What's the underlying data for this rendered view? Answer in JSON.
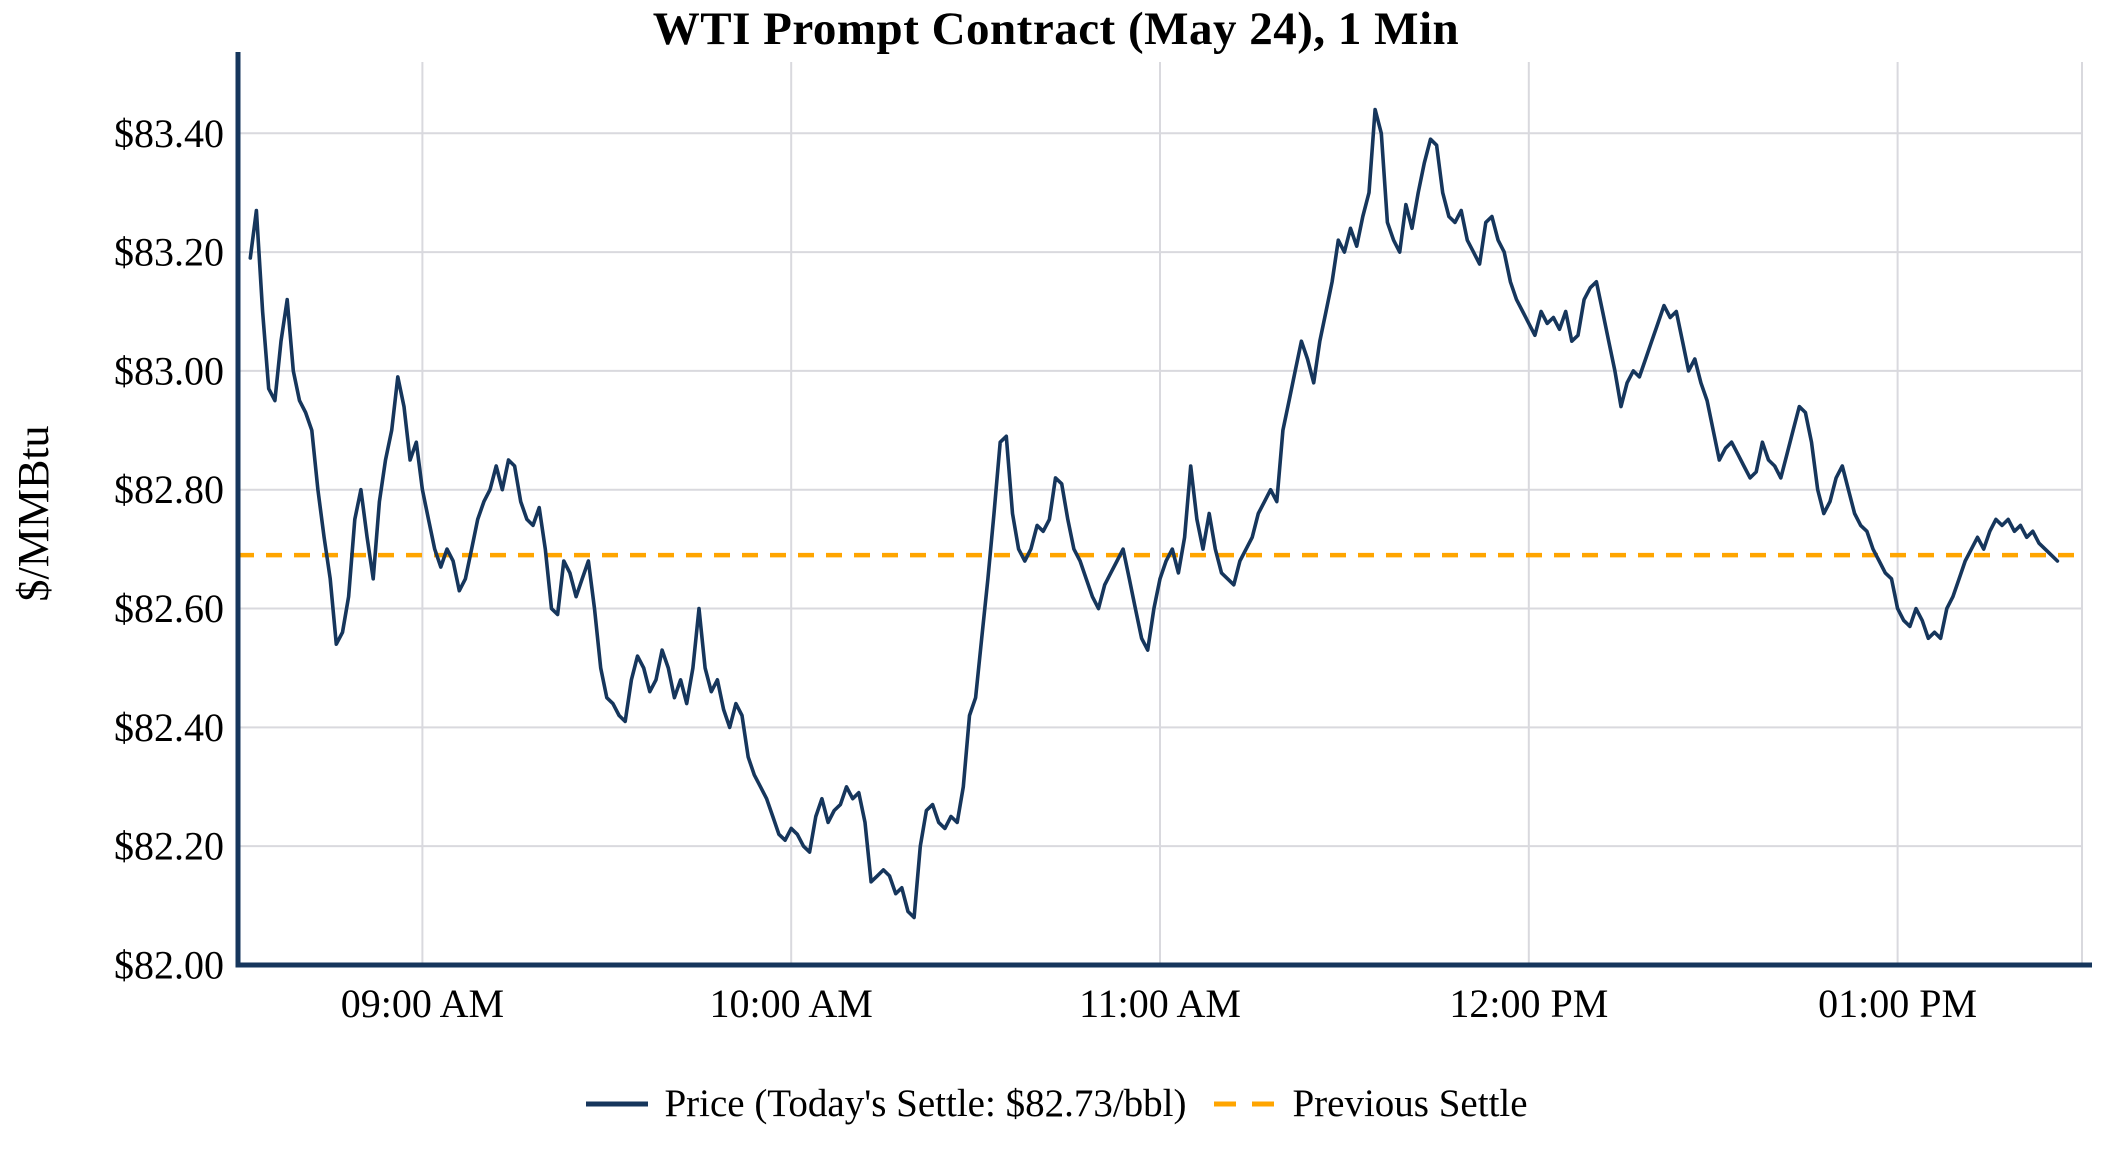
{
  "chart_data": {
    "type": "line",
    "title": "WTI Prompt Contract (May 24), 1 Min",
    "xlabel": "",
    "ylabel": "$/MMBtu",
    "xlim": [
      510,
      810
    ],
    "ylim": [
      82.0,
      83.52
    ],
    "grid": true,
    "legend_position": "bottom",
    "x_ticks": [
      [
        540,
        "09:00 AM"
      ],
      [
        600,
        "10:00 AM"
      ],
      [
        660,
        "11:00 AM"
      ],
      [
        720,
        "12:00 PM"
      ],
      [
        780,
        "01:00 PM"
      ]
    ],
    "y_ticks": [
      [
        82.0,
        "$82.00"
      ],
      [
        82.2,
        "$82.20"
      ],
      [
        82.4,
        "$82.40"
      ],
      [
        82.6,
        "$82.60"
      ],
      [
        82.8,
        "$82.80"
      ],
      [
        83.0,
        "$83.00"
      ],
      [
        83.2,
        "$83.20"
      ],
      [
        83.4,
        "$83.40"
      ]
    ],
    "previous_settle": 82.69,
    "todays_settle": 82.73,
    "series": [
      {
        "name": "Price",
        "color": "#16365c",
        "start_minute": 512,
        "interval_minutes": 1,
        "prices": [
          83.19,
          83.27,
          83.1,
          82.97,
          82.95,
          83.05,
          83.12,
          83.0,
          82.95,
          82.93,
          82.9,
          82.8,
          82.72,
          82.65,
          82.54,
          82.56,
          82.62,
          82.75,
          82.8,
          82.72,
          82.65,
          82.78,
          82.85,
          82.9,
          82.99,
          82.94,
          82.85,
          82.88,
          82.8,
          82.75,
          82.7,
          82.67,
          82.7,
          82.68,
          82.63,
          82.65,
          82.7,
          82.75,
          82.78,
          82.8,
          82.84,
          82.8,
          82.85,
          82.84,
          82.78,
          82.75,
          82.74,
          82.77,
          82.7,
          82.6,
          82.59,
          82.68,
          82.66,
          82.62,
          82.65,
          82.68,
          82.6,
          82.5,
          82.45,
          82.44,
          82.42,
          82.41,
          82.48,
          82.52,
          82.5,
          82.46,
          82.48,
          82.53,
          82.5,
          82.45,
          82.48,
          82.44,
          82.5,
          82.6,
          82.5,
          82.46,
          82.48,
          82.43,
          82.4,
          82.44,
          82.42,
          82.35,
          82.32,
          82.3,
          82.28,
          82.25,
          82.22,
          82.21,
          82.23,
          82.22,
          82.2,
          82.19,
          82.25,
          82.28,
          82.24,
          82.26,
          82.27,
          82.3,
          82.28,
          82.29,
          82.24,
          82.14,
          82.15,
          82.16,
          82.15,
          82.12,
          82.13,
          82.09,
          82.08,
          82.2,
          82.26,
          82.27,
          82.24,
          82.23,
          82.25,
          82.24,
          82.3,
          82.42,
          82.45,
          82.55,
          82.65,
          82.76,
          82.88,
          82.89,
          82.76,
          82.7,
          82.68,
          82.7,
          82.74,
          82.73,
          82.75,
          82.82,
          82.81,
          82.75,
          82.7,
          82.68,
          82.65,
          82.62,
          82.6,
          82.64,
          82.66,
          82.68,
          82.7,
          82.65,
          82.6,
          82.55,
          82.53,
          82.6,
          82.65,
          82.68,
          82.7,
          82.66,
          82.72,
          82.84,
          82.75,
          82.7,
          82.76,
          82.7,
          82.66,
          82.65,
          82.64,
          82.68,
          82.7,
          82.72,
          82.76,
          82.78,
          82.8,
          82.78,
          82.9,
          82.95,
          83.0,
          83.05,
          83.02,
          82.98,
          83.05,
          83.1,
          83.15,
          83.22,
          83.2,
          83.24,
          83.21,
          83.26,
          83.3,
          83.44,
          83.4,
          83.25,
          83.22,
          83.2,
          83.28,
          83.24,
          83.3,
          83.35,
          83.39,
          83.38,
          83.3,
          83.26,
          83.25,
          83.27,
          83.22,
          83.2,
          83.18,
          83.25,
          83.26,
          83.22,
          83.2,
          83.15,
          83.12,
          83.1,
          83.08,
          83.06,
          83.1,
          83.08,
          83.09,
          83.07,
          83.1,
          83.05,
          83.06,
          83.12,
          83.14,
          83.15,
          83.1,
          83.05,
          83.0,
          82.94,
          82.98,
          83.0,
          82.99,
          83.02,
          83.05,
          83.08,
          83.11,
          83.09,
          83.1,
          83.05,
          83.0,
          83.02,
          82.98,
          82.95,
          82.9,
          82.85,
          82.87,
          82.88,
          82.86,
          82.84,
          82.82,
          82.83,
          82.88,
          82.85,
          82.84,
          82.82,
          82.86,
          82.9,
          82.94,
          82.93,
          82.88,
          82.8,
          82.76,
          82.78,
          82.82,
          82.84,
          82.8,
          82.76,
          82.74,
          82.73,
          82.7,
          82.68,
          82.66,
          82.65,
          82.6,
          82.58,
          82.57,
          82.6,
          82.58,
          82.55,
          82.56,
          82.55,
          82.6,
          82.62,
          82.65,
          82.68,
          82.7,
          82.72,
          82.7,
          82.73,
          82.75,
          82.74,
          82.75,
          82.73,
          82.74,
          82.72,
          82.73,
          82.71,
          82.7,
          82.69,
          82.68
        ]
      }
    ],
    "legend": [
      {
        "label": "Price (Today's Settle: $82.73/bbl)",
        "color": "#16365c",
        "dash": false
      },
      {
        "label": "Previous Settle",
        "color": "#ffa500",
        "dash": true
      }
    ],
    "colors": {
      "line": "#16365c",
      "axis": "#16365c",
      "grid": "#d9d9de",
      "settle": "#ffa500",
      "text": "#000000"
    }
  }
}
